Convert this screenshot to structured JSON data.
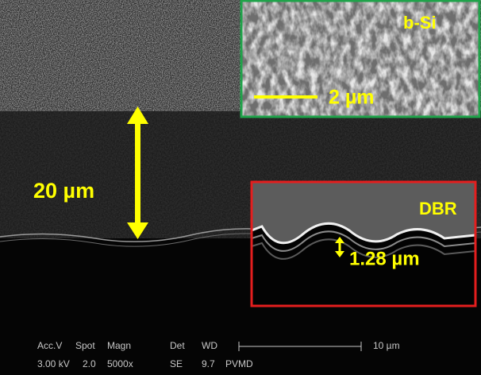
{
  "main": {
    "thickness_label": "20 µm"
  },
  "inset_top": {
    "label": "b-Si",
    "scale_label": "2 µm"
  },
  "inset_bottom": {
    "label": "DBR",
    "period_label": "1.28 µm"
  },
  "info_bar": {
    "headers": [
      "Acc.V",
      "Spot",
      "Magn",
      "Det",
      "WD"
    ],
    "values": [
      "3.00 kV",
      "2.0",
      "5000x",
      "SE",
      "9.7",
      "PVMD"
    ],
    "scale_label": "10 µm"
  }
}
